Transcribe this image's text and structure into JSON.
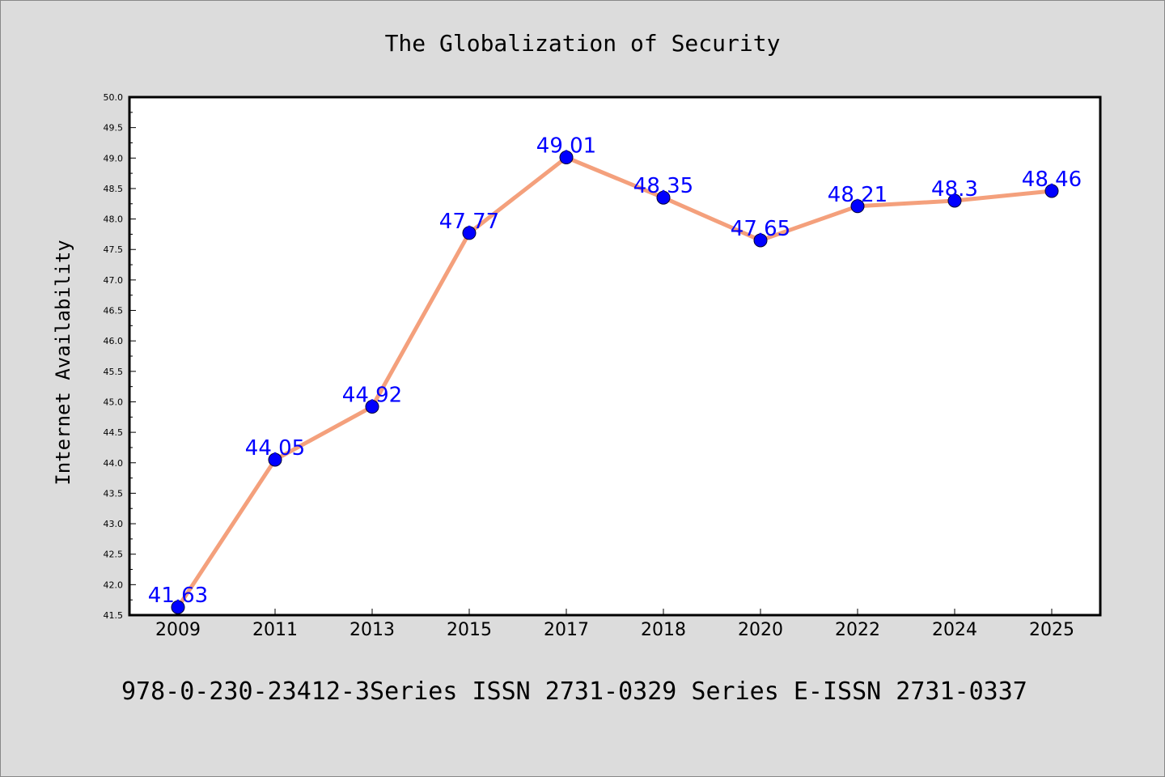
{
  "chart_data": {
    "type": "line",
    "title": "The Globalization of Security",
    "xlabel": "",
    "ylabel": "Internet Availability",
    "footer": "978-0-230-23412-3Series ISSN 2731-0329 Series E-ISSN 2731-0337",
    "categories": [
      "2009",
      "2011",
      "2013",
      "2015",
      "2017",
      "2018",
      "2020",
      "2022",
      "2024",
      "2025"
    ],
    "series": [
      {
        "values": [
          41.63,
          44.05,
          44.92,
          47.77,
          49.01,
          48.35,
          47.65,
          48.21,
          48.3,
          48.46
        ],
        "labels": [
          "41.63",
          "44.05",
          "44.92",
          "47.77",
          "49.01",
          "48.35",
          "47.65",
          "48.21",
          "48.3",
          "48.46"
        ],
        "line_color": "#f4a07c",
        "marker_color": "#0000ff",
        "label_color": "#0000ff"
      }
    ],
    "ylim": [
      41.5,
      50.0
    ],
    "yticks": [
      "41.5",
      "42.0",
      "42.5",
      "43.0",
      "43.5",
      "44.0",
      "44.5",
      "45.0",
      "45.5",
      "46.0",
      "46.5",
      "47.0",
      "47.5",
      "48.0",
      "48.5",
      "49.0",
      "49.5",
      "50.0"
    ],
    "grid": false,
    "background": "#dcdcdc",
    "plot_background": "#ffffff"
  }
}
